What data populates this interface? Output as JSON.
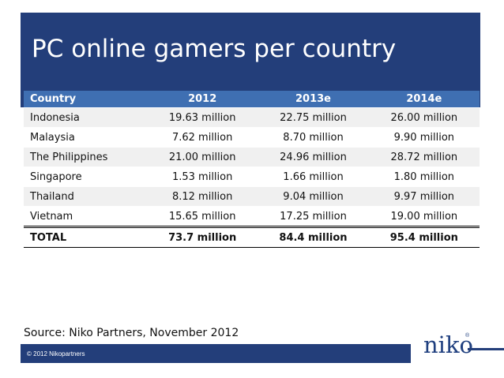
{
  "slide": {
    "title": "PC online gamers per country",
    "source": "Source: Niko Partners, November 2012",
    "copyright": "© 2012 Nikopartners",
    "logo_text": "niko",
    "logo_mark": "®"
  },
  "table": {
    "headers": [
      "Country",
      "2012",
      "2013e",
      "2014e"
    ],
    "rows": [
      [
        "Indonesia",
        "19.63 million",
        "22.75 million",
        "26.00 million"
      ],
      [
        "Malaysia",
        "7.62 million",
        "8.70 million",
        "9.90 million"
      ],
      [
        "The Philippines",
        "21.00 million",
        "24.96 million",
        "28.72 million"
      ],
      [
        "Singapore",
        "1.53 million",
        "1.66 million",
        "1.80 million"
      ],
      [
        "Thailand",
        "8.12 million",
        "9.04 million",
        "9.97 million"
      ],
      [
        "Vietnam",
        "15.65 million",
        "17.25 million",
        "19.00 million"
      ]
    ],
    "total": [
      "TOTAL",
      "73.7 million",
      "84.4 million",
      "95.4 million"
    ]
  },
  "colors": {
    "title_bar": "#233e7a",
    "header_row": "#3f6fb2",
    "logo": "#1f3f7f"
  }
}
